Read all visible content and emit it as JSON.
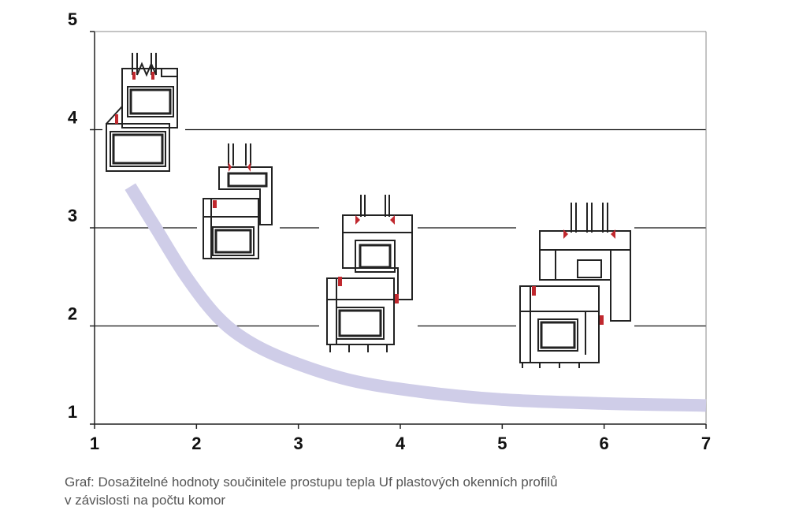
{
  "chart_data": {
    "type": "line",
    "title": "",
    "xlabel": "",
    "ylabel": "",
    "xlim": [
      1,
      7
    ],
    "ylim": [
      1,
      5
    ],
    "x_ticks": [
      "1",
      "2",
      "3",
      "4",
      "5",
      "6",
      "7"
    ],
    "y_ticks": [
      "1",
      "2",
      "3",
      "4",
      "5"
    ],
    "gridlines_y": [
      2,
      3,
      4
    ],
    "series": [
      {
        "color": "#cfcde8",
        "points": [
          {
            "x": 1.35,
            "y": 3.42
          },
          {
            "x": 1.6,
            "y": 3.0
          },
          {
            "x": 1.9,
            "y": 2.5
          },
          {
            "x": 2.2,
            "y": 2.1
          },
          {
            "x": 2.5,
            "y": 1.85
          },
          {
            "x": 2.9,
            "y": 1.65
          },
          {
            "x": 3.5,
            "y": 1.45
          },
          {
            "x": 4.2,
            "y": 1.33
          },
          {
            "x": 5.0,
            "y": 1.25
          },
          {
            "x": 6.0,
            "y": 1.21
          },
          {
            "x": 7.0,
            "y": 1.19
          }
        ]
      }
    ],
    "profile_illustrations": [
      {
        "chambers": 1,
        "name": "profile-1-icon"
      },
      {
        "chambers": 2,
        "name": "profile-2-icon"
      },
      {
        "chambers": 3,
        "name": "profile-3-icon"
      },
      {
        "chambers": 5,
        "name": "profile-5-icon"
      }
    ]
  },
  "caption": {
    "line1": "Graf: Dosažitelné hodnoty součinitele prostupu tepla Uf plastových okenních profilů",
    "line2": "v závislosti na počtu komor"
  }
}
